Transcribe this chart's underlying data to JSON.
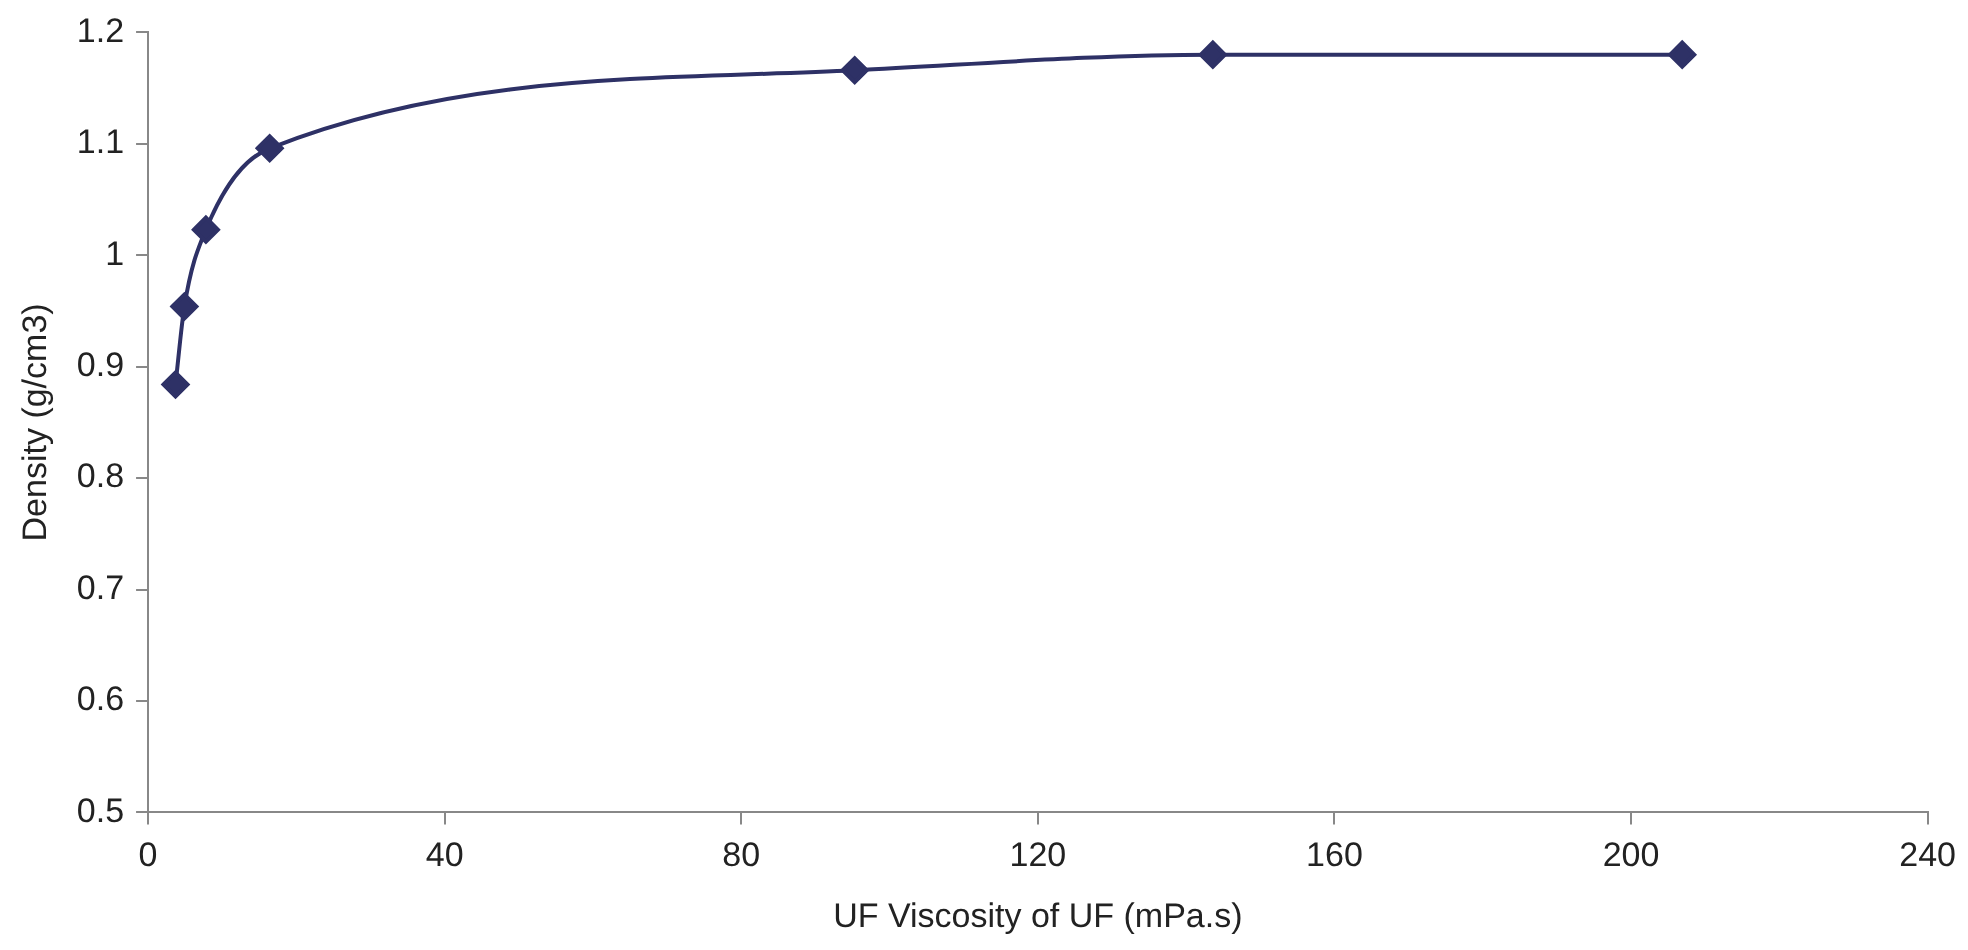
{
  "chart_data": {
    "type": "line",
    "xlabel": "UF Viscosity of UF (mPa.s)",
    "ylabel": "Density (g/cm3)",
    "x": [
      3.7,
      4.9,
      7.8,
      16.4,
      95.3,
      143.6,
      206.9
    ],
    "series": [
      {
        "color": "#2e3166",
        "values": [
          0.884,
          0.954,
          1.023,
          1.096,
          1.166,
          1.18,
          1.18
        ]
      }
    ],
    "xlim": [
      0,
      240
    ],
    "xticks": [
      0,
      40,
      80,
      120,
      160,
      200,
      240
    ],
    "ylim": [
      0.5,
      1.2
    ],
    "yticks": [
      {
        "value": 0.5,
        "label": "0.5"
      },
      {
        "value": 0.6,
        "label": "0.6"
      },
      {
        "value": 0.7,
        "label": "0.7"
      },
      {
        "value": 0.8,
        "label": "0.8"
      },
      {
        "value": 0.9,
        "label": "0.9"
      },
      {
        "value": 1,
        "label": "1"
      },
      {
        "value": 1.1,
        "label": "1.1"
      },
      {
        "value": 1.2,
        "label": "1.2"
      }
    ],
    "grid": false,
    "legend": false,
    "marker": "diamond",
    "line_style": "solid"
  }
}
